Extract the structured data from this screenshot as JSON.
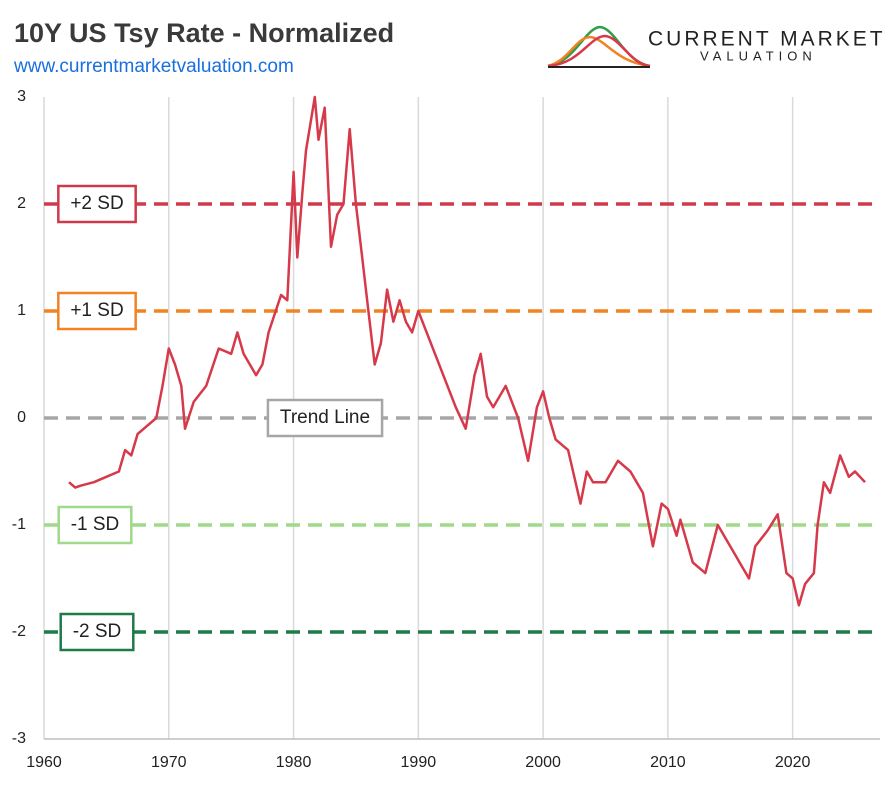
{
  "chart_data": {
    "type": "line",
    "title": "10Y US Tsy Rate - Normalized",
    "subtitle": "www.currentmarketvaluation.com",
    "logo": {
      "line1": "CURRENT MARKET",
      "line2": "VALUATION"
    },
    "xlim": [
      1960,
      2027
    ],
    "xticks": [
      1960,
      1970,
      1980,
      1990,
      2000,
      2010,
      2020
    ],
    "ylim": [
      -3,
      3
    ],
    "yticks": [
      -3,
      -2,
      -1,
      0,
      1,
      2,
      3
    ],
    "grid": true,
    "reference_lines": [
      {
        "value": 2,
        "label": "+2 SD",
        "color": "#cf3a4b"
      },
      {
        "value": 1,
        "label": "+1 SD",
        "color": "#f08323"
      },
      {
        "value": 0,
        "label": "Trend Line",
        "color": "#a6a6a6"
      },
      {
        "value": -1,
        "label": "-1 SD",
        "color": "#9fd98a"
      },
      {
        "value": -2,
        "label": "-2 SD",
        "color": "#1f7a4a"
      }
    ],
    "series": [
      {
        "color": "#d63a4a",
        "x": [
          1962,
          1962.5,
          1963,
          1964,
          1965,
          1966,
          1966.5,
          1967,
          1967.5,
          1968,
          1969,
          1969.5,
          1970,
          1970.5,
          1971,
          1971.3,
          1972,
          1973,
          1974,
          1975,
          1975.5,
          1976,
          1977,
          1977.5,
          1978,
          1979,
          1979.5,
          1980,
          1980.3,
          1980.7,
          1981,
          1981.7,
          1982,
          1982.5,
          1983,
          1983.5,
          1984,
          1984.5,
          1985,
          1985.5,
          1986,
          1986.5,
          1987,
          1987.5,
          1988,
          1988.5,
          1989,
          1989.5,
          1990,
          1991,
          1992,
          1993,
          1993.8,
          1994.5,
          1995,
          1995.5,
          1996,
          1997,
          1998,
          1998.8,
          1999.5,
          2000,
          2000.5,
          2001,
          2002,
          2003,
          2003.5,
          2004,
          2005,
          2006,
          2007,
          2008,
          2008.8,
          2009.5,
          2010,
          2010.7,
          2011,
          2012,
          2013,
          2014,
          2015,
          2016,
          2016.5,
          2017,
          2018,
          2018.8,
          2019.5,
          2020,
          2020.5,
          2021,
          2021.7,
          2022,
          2022.5,
          2023,
          2023.8,
          2024.5,
          2025,
          2025.8
        ],
        "values": [
          -0.6,
          -0.65,
          -0.63,
          -0.6,
          -0.55,
          -0.5,
          -0.3,
          -0.35,
          -0.15,
          -0.1,
          0.0,
          0.3,
          0.65,
          0.5,
          0.3,
          -0.1,
          0.15,
          0.3,
          0.65,
          0.6,
          0.8,
          0.6,
          0.4,
          0.5,
          0.8,
          1.15,
          1.1,
          2.3,
          1.5,
          2.1,
          2.5,
          3.0,
          2.6,
          2.9,
          1.6,
          1.9,
          2.0,
          2.7,
          2.0,
          1.5,
          1.0,
          0.5,
          0.7,
          1.2,
          0.9,
          1.1,
          0.9,
          0.8,
          1.0,
          0.7,
          0.4,
          0.1,
          -0.1,
          0.4,
          0.6,
          0.2,
          0.1,
          0.3,
          0.0,
          -0.4,
          0.1,
          0.25,
          0.0,
          -0.2,
          -0.3,
          -0.8,
          -0.5,
          -0.6,
          -0.6,
          -0.4,
          -0.5,
          -0.7,
          -1.2,
          -0.8,
          -0.85,
          -1.1,
          -0.95,
          -1.35,
          -1.45,
          -1.0,
          -1.2,
          -1.4,
          -1.5,
          -1.2,
          -1.05,
          -0.9,
          -1.45,
          -1.5,
          -1.75,
          -1.55,
          -1.45,
          -1.0,
          -0.6,
          -0.7,
          -0.35,
          -0.55,
          -0.5,
          -0.6
        ]
      }
    ]
  }
}
